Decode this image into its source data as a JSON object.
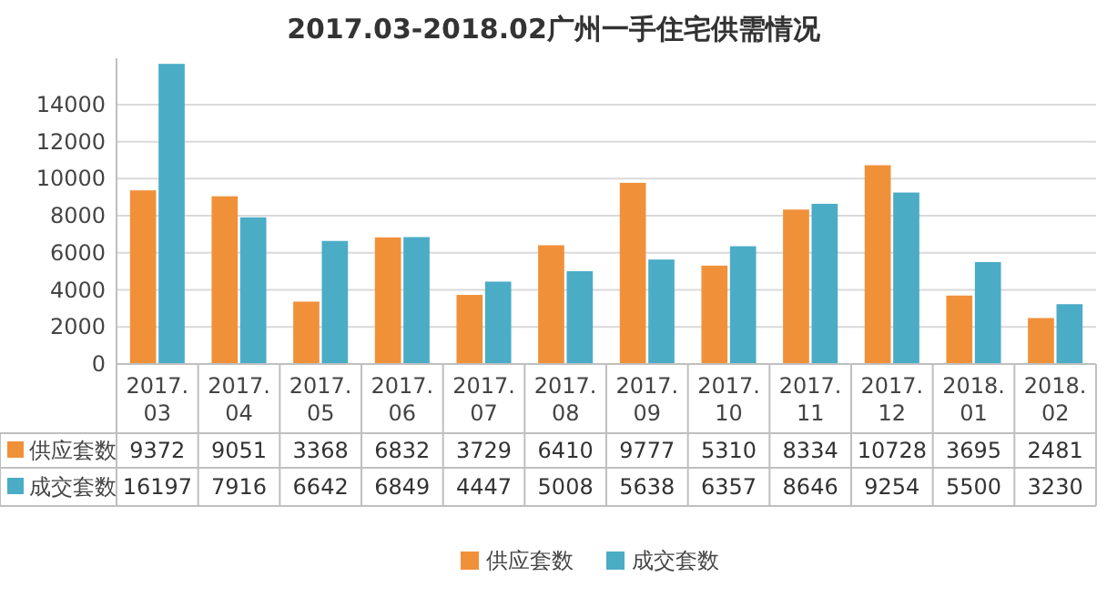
{
  "chart_data": {
    "type": "bar",
    "title": "2017.03-2018.02广州一手住宅供需情况",
    "categories": [
      "2017.03",
      "2017.04",
      "2017.05",
      "2017.06",
      "2017.07",
      "2017.08",
      "2017.09",
      "2017.10",
      "2017.11",
      "2017.12",
      "2018.01",
      "2018.02"
    ],
    "series": [
      {
        "name": "供应套数",
        "color": "#f0913a",
        "values": [
          9372,
          9051,
          3368,
          6832,
          3729,
          6410,
          9777,
          5310,
          8334,
          10728,
          3695,
          2481
        ]
      },
      {
        "name": "成交套数",
        "color": "#4bacc6",
        "values": [
          16197,
          7916,
          6642,
          6849,
          4447,
          5008,
          5638,
          6357,
          8646,
          9254,
          5500,
          3230
        ]
      }
    ],
    "ylim": [
      0,
      16500
    ],
    "yticks": [
      0,
      2000,
      4000,
      6000,
      8000,
      10000,
      12000,
      14000
    ],
    "grid": "y",
    "legend": "bottom",
    "data_labels": true
  }
}
